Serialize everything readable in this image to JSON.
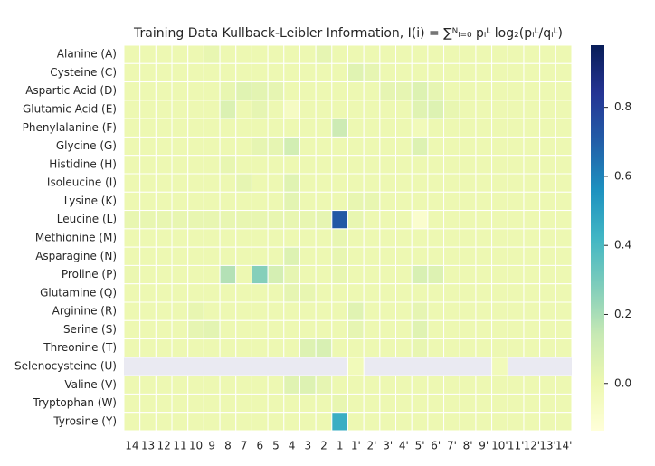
{
  "chart_data": {
    "type": "heatmap",
    "title": "Training Data Kullback-Leibler Information, I(i) = ∑ᴺₗ₌₀ pᵢᴸ log₂(pᵢᴸ/qᵢᴸ)",
    "x": [
      "14",
      "13",
      "12",
      "11",
      "10",
      "9",
      "8",
      "7",
      "6",
      "5",
      "4",
      "3",
      "2",
      "1",
      "1'",
      "2'",
      "3'",
      "4'",
      "5'",
      "6'",
      "7'",
      "8'",
      "9'",
      "10'",
      "11'",
      "12'",
      "13'",
      "14'"
    ],
    "categories": [
      "Alanine (A)",
      "Cysteine (C)",
      "Aspartic Acid (D)",
      "Glutamic Acid (E)",
      "Phenylalanine (F)",
      "Glycine (G)",
      "Histidine (H)",
      "Isoleucine (I)",
      "Lysine (K)",
      "Leucine (L)",
      "Methionine (M)",
      "Asparagine (N)",
      "Proline (P)",
      "Glutamine (Q)",
      "Arginine (R)",
      "Serine (S)",
      "Threonine (T)",
      "Selenocysteine (U)",
      "Valine (V)",
      "Tryptophan (W)",
      "Tyrosine (Y)"
    ],
    "values": [
      [
        0,
        0,
        0,
        0,
        0,
        0.02,
        0,
        0,
        0,
        0,
        0,
        0,
        0.03,
        0,
        0,
        0,
        0,
        0,
        0,
        0,
        0,
        0,
        0,
        0,
        0,
        0,
        0,
        0
      ],
      [
        0,
        0,
        0,
        0,
        0,
        0,
        0,
        0,
        0,
        0,
        0,
        0,
        0,
        0,
        0.05,
        0.03,
        0,
        0,
        0,
        0,
        0,
        0,
        0,
        0,
        0,
        0,
        0,
        0
      ],
      [
        0,
        0,
        0,
        0,
        0,
        0,
        0.02,
        0.05,
        0.04,
        0.03,
        0,
        0,
        0,
        0,
        0,
        0,
        0.03,
        0.03,
        0.06,
        0.03,
        0,
        0,
        0,
        0,
        0,
        0,
        0,
        0
      ],
      [
        0,
        0,
        0,
        0,
        0,
        0,
        0.07,
        0,
        0.03,
        0,
        -0.06,
        0,
        0,
        0,
        0,
        0,
        0,
        0,
        0.05,
        0.06,
        0.02,
        0,
        0,
        0,
        0,
        0,
        0,
        0
      ],
      [
        0,
        0,
        0,
        0,
        0,
        0,
        0,
        0,
        0,
        0,
        0,
        0,
        0,
        0.12,
        0,
        0,
        0,
        0,
        -0.03,
        0,
        0,
        0,
        0,
        0,
        0,
        0,
        0,
        0
      ],
      [
        0,
        0,
        0,
        0,
        0,
        0,
        0,
        0,
        0.03,
        0.03,
        0.1,
        0,
        0,
        0,
        0,
        0,
        0,
        0,
        0.06,
        0,
        0,
        0,
        0,
        0,
        0,
        0,
        0,
        0
      ],
      [
        0,
        0,
        0,
        0,
        0,
        0,
        0.02,
        0,
        0,
        0,
        0,
        0,
        0,
        0,
        0,
        0,
        0,
        0,
        0,
        0,
        0,
        0,
        0,
        0,
        0,
        0,
        0,
        0
      ],
      [
        0,
        0,
        0,
        0,
        0,
        0,
        0,
        0.03,
        0,
        0,
        0.05,
        0,
        0,
        0,
        0,
        0,
        0,
        0,
        0,
        0,
        0,
        0,
        0,
        0,
        0,
        0,
        0,
        0
      ],
      [
        0,
        0,
        0,
        0,
        0,
        0,
        0,
        0,
        0,
        0,
        0.04,
        0,
        0,
        0,
        0.02,
        0.02,
        0,
        0,
        0,
        0,
        0,
        0,
        0,
        0,
        0,
        0,
        0,
        0
      ],
      [
        0.02,
        0.02,
        0.02,
        0.02,
        0.02,
        0.02,
        0.02,
        0.02,
        0.02,
        0.02,
        0.02,
        0.02,
        0.03,
        0.72,
        0.02,
        0,
        0,
        0,
        -0.1,
        0,
        0,
        0,
        0,
        0,
        0,
        0,
        0,
        0
      ],
      [
        0,
        0,
        0,
        0,
        0,
        0,
        0,
        0,
        0,
        0,
        0,
        0,
        0,
        0.02,
        0,
        0,
        0,
        0,
        0,
        0,
        0,
        0,
        0,
        0,
        0,
        0,
        0,
        0
      ],
      [
        0,
        0,
        0,
        0,
        0,
        0,
        0,
        0,
        0,
        0,
        0.06,
        0,
        0,
        0.02,
        0,
        0,
        0,
        0,
        0,
        0,
        0,
        0,
        0,
        0,
        0,
        0,
        0,
        0
      ],
      [
        0.01,
        0,
        0,
        0,
        0,
        0,
        0.18,
        0,
        0.27,
        0.09,
        0.03,
        0,
        0,
        0.02,
        0,
        0,
        0,
        0,
        0.08,
        0.06,
        0,
        0,
        0,
        0,
        0,
        0,
        0,
        0
      ],
      [
        0,
        0,
        0,
        0,
        0,
        0,
        0,
        0,
        0,
        0,
        0.03,
        0.02,
        0,
        0,
        0,
        0,
        0,
        0,
        0,
        0,
        0,
        0,
        0,
        0,
        0,
        0,
        0,
        0
      ],
      [
        0,
        0,
        0,
        0,
        0.02,
        0,
        0,
        0,
        0,
        0,
        0,
        0,
        0,
        0,
        0.05,
        0,
        0,
        0,
        0.03,
        0,
        0,
        0,
        0,
        0,
        0,
        0,
        0,
        0
      ],
      [
        0,
        0,
        0,
        0,
        0.03,
        0.04,
        0,
        0,
        0,
        0,
        0,
        0,
        0,
        0,
        0.03,
        0,
        0,
        0,
        0.05,
        0,
        0,
        0,
        0,
        0,
        0,
        0,
        0,
        0
      ],
      [
        0,
        0,
        0,
        0,
        0,
        0,
        0,
        0,
        0,
        0,
        0,
        0.06,
        0.08,
        0,
        0,
        0,
        0,
        0,
        0.02,
        0,
        0,
        0,
        0,
        0,
        0,
        0,
        0,
        0
      ],
      [
        null,
        null,
        null,
        null,
        null,
        null,
        null,
        null,
        null,
        null,
        null,
        null,
        null,
        null,
        -0.03,
        null,
        null,
        null,
        null,
        null,
        null,
        null,
        null,
        -0.03,
        null,
        null,
        null,
        null
      ],
      [
        0,
        0,
        0,
        0,
        0,
        0,
        0,
        0,
        0,
        0,
        0.05,
        0.06,
        0.03,
        0,
        0,
        0,
        0,
        0,
        0,
        0,
        0,
        0,
        0,
        0,
        0,
        0,
        0,
        0
      ],
      [
        0,
        0,
        0,
        0,
        0,
        0,
        0,
        0,
        0,
        0,
        0,
        0,
        0,
        0.02,
        0,
        0,
        0,
        0,
        0,
        0,
        0,
        0,
        0,
        0,
        0,
        0,
        0,
        0
      ],
      [
        0,
        0,
        0,
        0,
        0,
        0,
        0,
        0,
        0,
        0,
        0,
        0,
        0,
        0.45,
        0,
        0,
        0,
        0,
        0,
        0,
        0,
        0,
        0,
        0,
        0,
        0,
        0,
        0
      ]
    ],
    "clim": [
      -0.137,
      0.98
    ],
    "cticks": [
      {
        "value": 0,
        "label": "0.0"
      },
      0.2,
      0.4,
      0.6,
      0.8
    ],
    "colormap": [
      "#ffffd9",
      "#edf8b1",
      "#c7e9b4",
      "#7fcdbb",
      "#41b6c4",
      "#1d91c0",
      "#225ea8",
      "#253494",
      "#081d58"
    ],
    "null_color": "#eaeaf2"
  }
}
